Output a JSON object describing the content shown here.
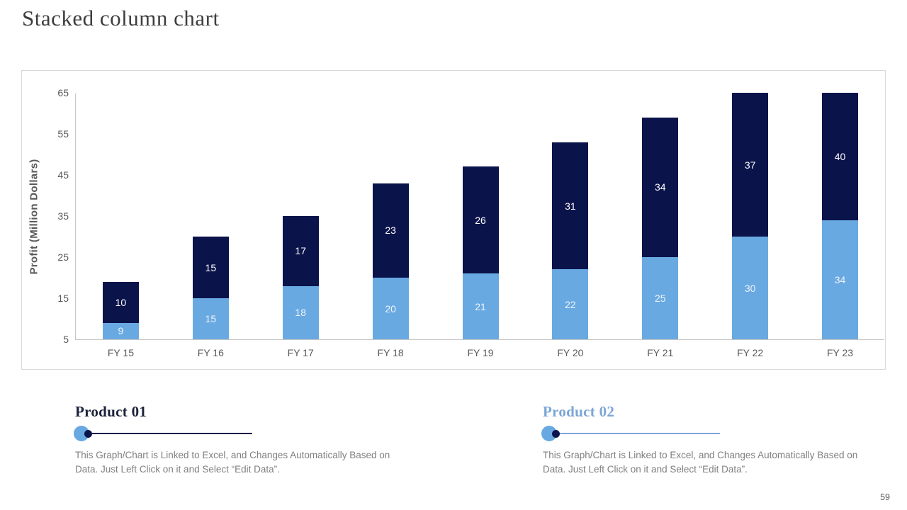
{
  "slide": {
    "title": "Stacked column chart",
    "page_number": "59"
  },
  "chart_data": {
    "type": "bar",
    "stacked": true,
    "categories": [
      "FY 15",
      "FY 16",
      "FY 17",
      "FY 18",
      "FY 19",
      "FY 20",
      "FY 21",
      "FY 22",
      "FY 23"
    ],
    "series": [
      {
        "name": "Product 01",
        "color": "#69A9E2",
        "label_color": "#EDF4FB",
        "values": [
          9,
          15,
          18,
          20,
          21,
          22,
          25,
          30,
          34
        ]
      },
      {
        "name": "Product 02",
        "color": "#0B134B",
        "label_color": "#FFFFFF",
        "values": [
          10,
          15,
          17,
          23,
          26,
          31,
          34,
          37,
          40
        ]
      }
    ],
    "xlabel": "",
    "ylabel": "Profit (Million Dollars)",
    "ylim": [
      5,
      65
    ],
    "yticks": [
      5,
      15,
      25,
      35,
      45,
      55,
      65
    ],
    "grid": false,
    "legend_position": "below-chart",
    "baseline_value": 5,
    "clip_max": 65
  },
  "legend": {
    "items": [
      {
        "label": "Product 01",
        "title_color": "#1B2239",
        "marker_fill": "#69A9E2",
        "marker_dot": "#0B134B",
        "line_color": "#10194a",
        "description": "This Graph/Chart is Linked to Excel, and Changes Automatically Based on Data. Just Left Click on it and Select “Edit Data”."
      },
      {
        "label": "Product 02",
        "title_color": "#7BA6D7",
        "marker_fill": "#69A9E2",
        "marker_dot": "#0B134B",
        "line_color": "#7BA6D7",
        "description": "This Graph/Chart is Linked to Excel, and Changes Automatically Based on Data. Just Left Click on it and Select “Edit Data”."
      }
    ]
  }
}
